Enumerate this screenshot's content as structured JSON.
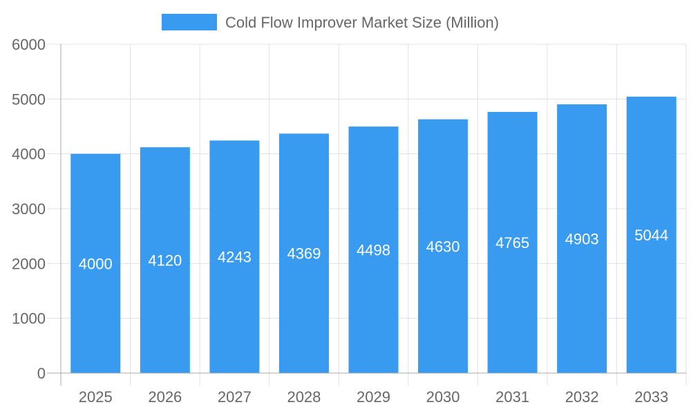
{
  "chart_data": {
    "type": "bar",
    "title": "",
    "xlabel": "",
    "ylabel": "",
    "categories": [
      "2025",
      "2026",
      "2027",
      "2028",
      "2029",
      "2030",
      "2031",
      "2032",
      "2033"
    ],
    "series": [
      {
        "name": "Cold Flow Improver Market Size (Million)",
        "values": [
          4000,
          4120,
          4243,
          4369,
          4498,
          4630,
          4765,
          4903,
          5044
        ],
        "color": "#389bf0"
      }
    ],
    "ylim": [
      0,
      6000
    ],
    "yticks": [
      0,
      1000,
      2000,
      3000,
      4000,
      5000,
      6000
    ],
    "grid": true,
    "legend": "top-center",
    "data_labels": true
  }
}
